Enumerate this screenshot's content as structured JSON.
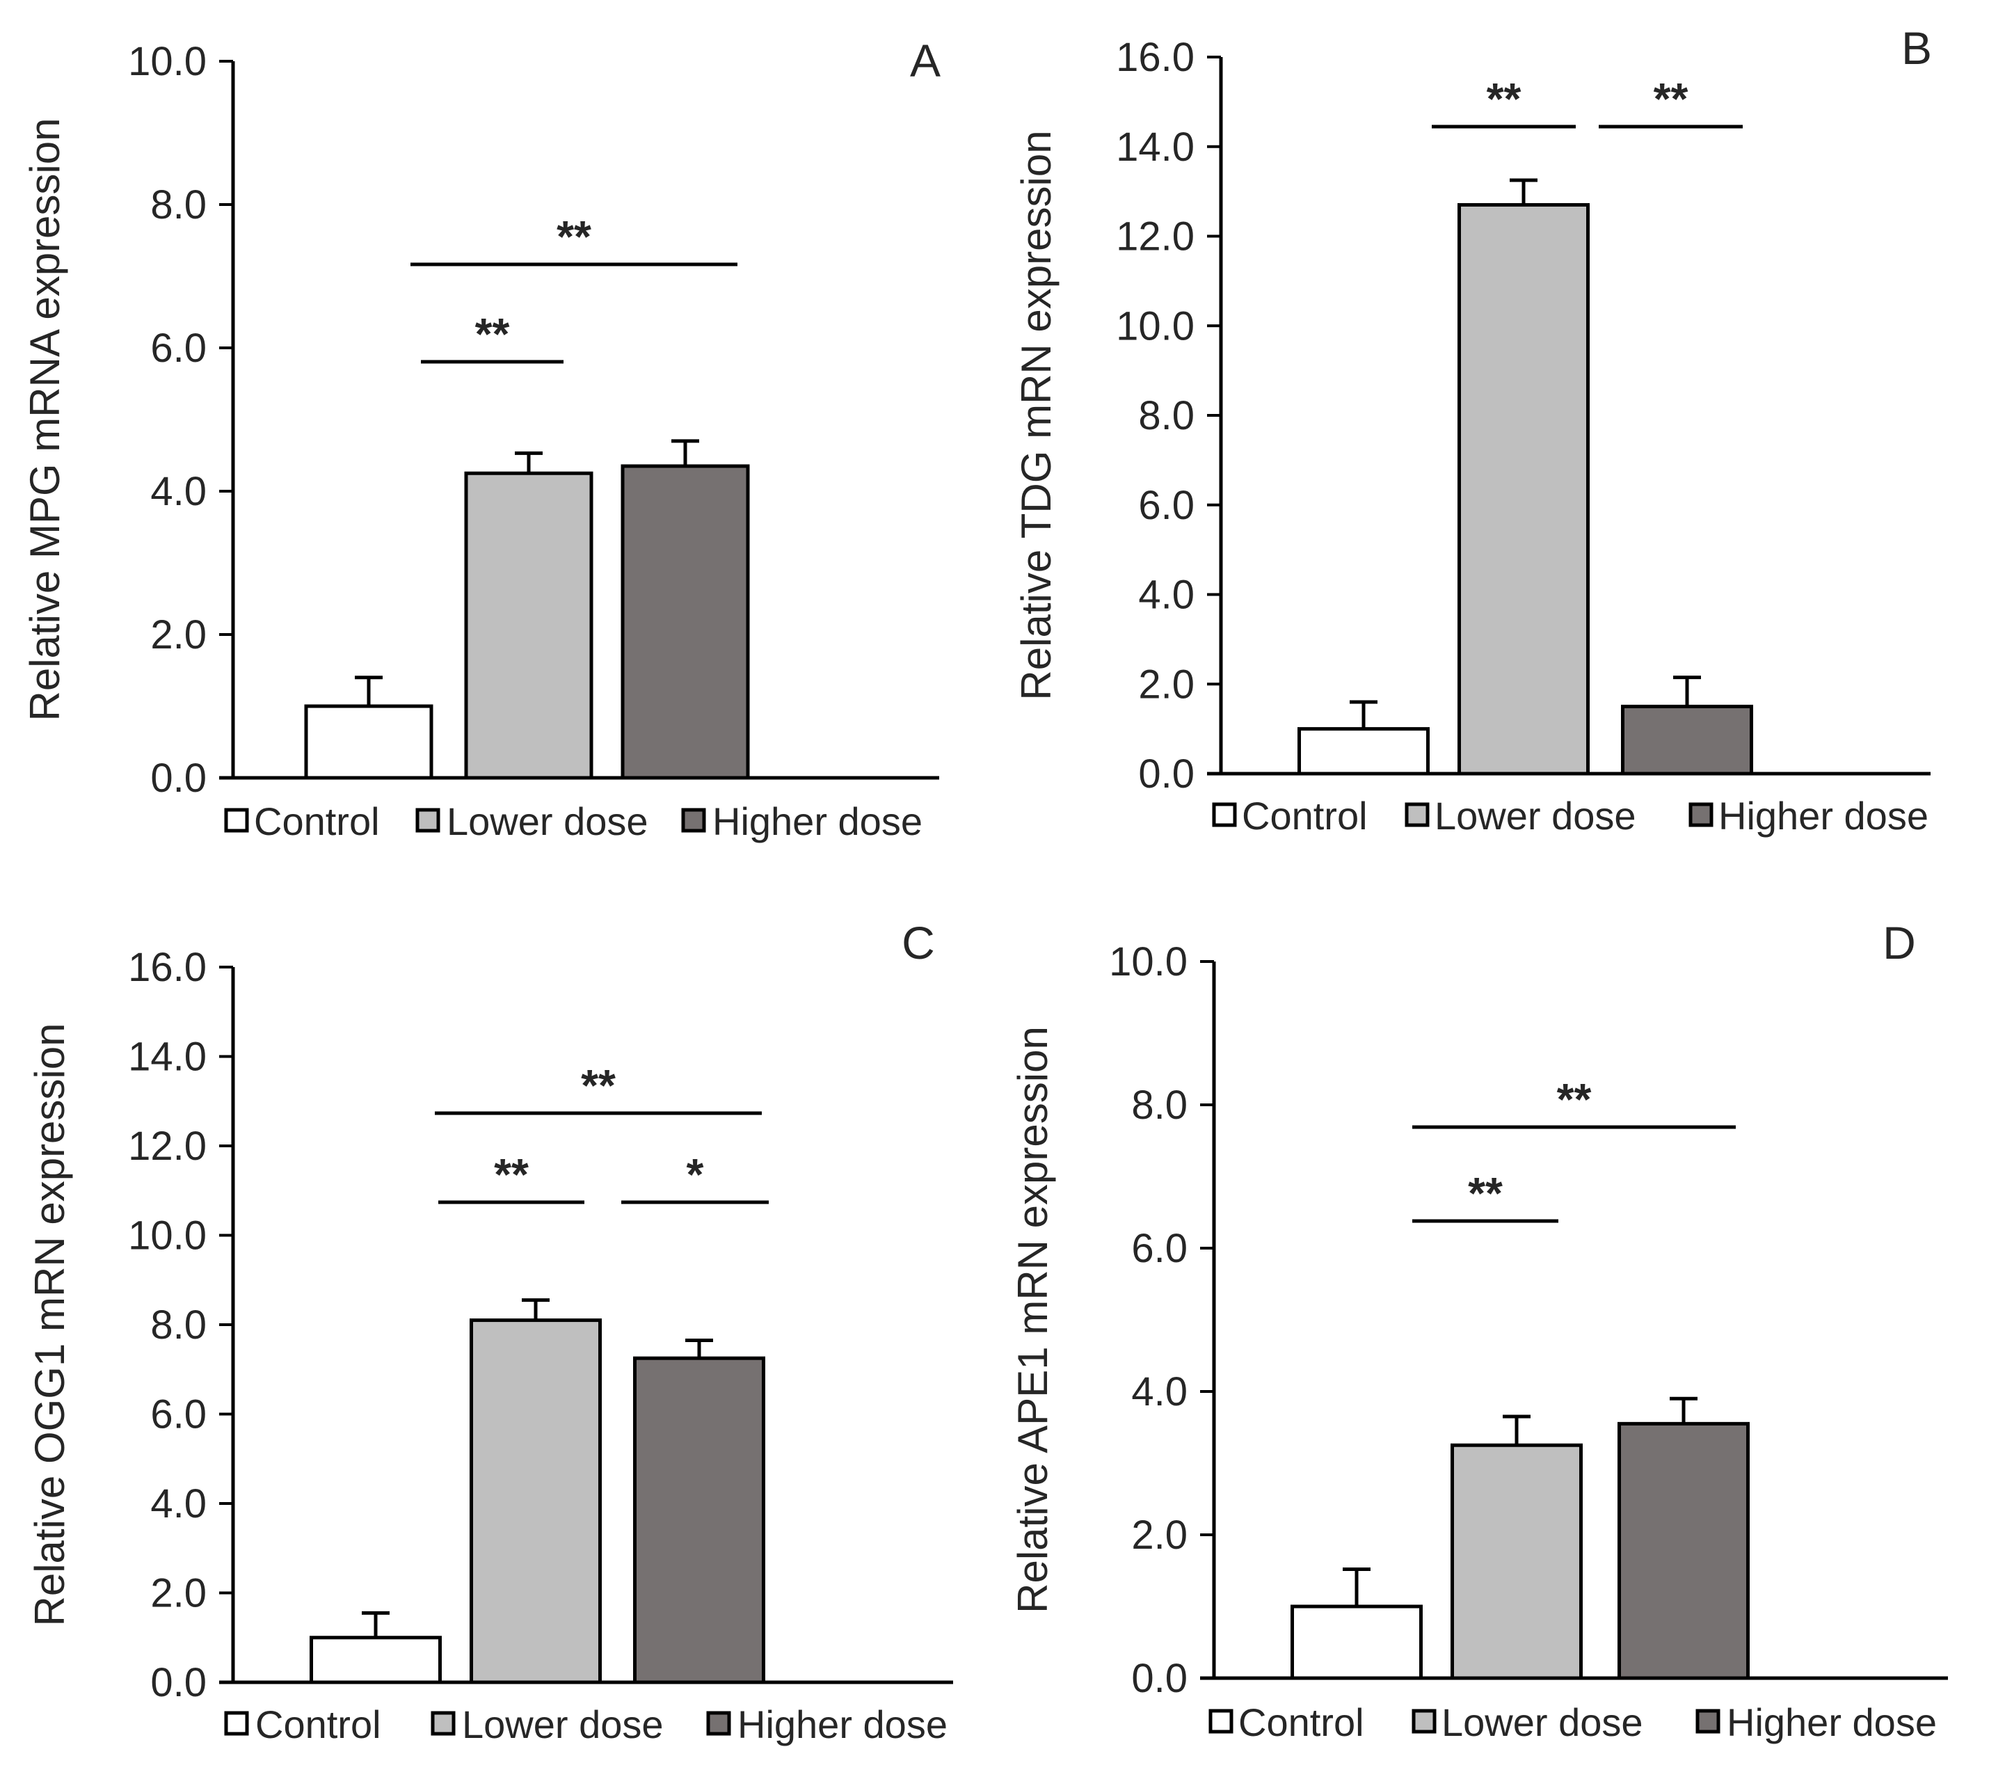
{
  "colors": {
    "control": "#ffffff",
    "lower": "#bfbfbf",
    "higher": "#767171",
    "stroke": "#000000"
  },
  "legend": [
    "Control",
    "Lower dose",
    "Higher dose"
  ],
  "chart_data": [
    {
      "type": "bar",
      "panel": "A",
      "ylabel": "Relative  MPG mRNA  expression",
      "ylim": [
        0,
        10
      ],
      "yticks": [
        "0.0",
        "2.0",
        "4.0",
        "6.0",
        "8.0",
        "10.0"
      ],
      "categories": [
        "Control",
        "Lower dose",
        "Higher dose"
      ],
      "values": [
        1.0,
        4.25,
        4.35
      ],
      "errors": [
        0.4,
        0.28,
        0.35
      ],
      "significance": [
        {
          "from": 0,
          "to": 1,
          "label": "**"
        },
        {
          "from": 0,
          "to": 2,
          "label": "**"
        }
      ]
    },
    {
      "type": "bar",
      "panel": "B",
      "ylabel": "Relative  TDG mRN  expression",
      "ylim": [
        0,
        16
      ],
      "yticks": [
        "0.0",
        "2.0",
        "4.0",
        "6.0",
        "8.0",
        "10.0",
        "12.0",
        "14.0",
        "16.0"
      ],
      "categories": [
        "Control",
        "Lower dose",
        "Higher dose"
      ],
      "values": [
        1.0,
        12.7,
        1.5
      ],
      "errors": [
        0.6,
        0.55,
        0.65
      ],
      "significance": [
        {
          "from": 0,
          "to": 1,
          "label": "**"
        },
        {
          "from": 1,
          "to": 2,
          "label": "**"
        }
      ]
    },
    {
      "type": "bar",
      "panel": "C",
      "ylabel": "Relative  OGG1  mRN expression",
      "ylim": [
        0,
        16
      ],
      "yticks": [
        "0.0",
        "2.0",
        "4.0",
        "6.0",
        "8.0",
        "10.0",
        "12.0",
        "14.0",
        "16.0"
      ],
      "categories": [
        "Control",
        "Lower dose",
        "Higher dose"
      ],
      "values": [
        1.0,
        8.1,
        7.25
      ],
      "errors": [
        0.55,
        0.45,
        0.4
      ],
      "significance": [
        {
          "from": 0,
          "to": 1,
          "label": "**"
        },
        {
          "from": 1,
          "to": 2,
          "label": "*"
        },
        {
          "from": 0,
          "to": 2,
          "label": "**"
        }
      ]
    },
    {
      "type": "bar",
      "panel": "D",
      "ylabel": "Relative  APE1 mRN expression",
      "ylim": [
        0,
        10
      ],
      "yticks": [
        "0.0",
        "2.0",
        "4.0",
        "6.0",
        "8.0",
        "10.0"
      ],
      "categories": [
        "Control",
        "Lower dose",
        "Higher dose"
      ],
      "values": [
        1.0,
        3.25,
        3.55
      ],
      "errors": [
        0.52,
        0.4,
        0.35
      ],
      "significance": [
        {
          "from": 0,
          "to": 1,
          "label": "**"
        },
        {
          "from": 0,
          "to": 2,
          "label": "**"
        }
      ]
    }
  ]
}
